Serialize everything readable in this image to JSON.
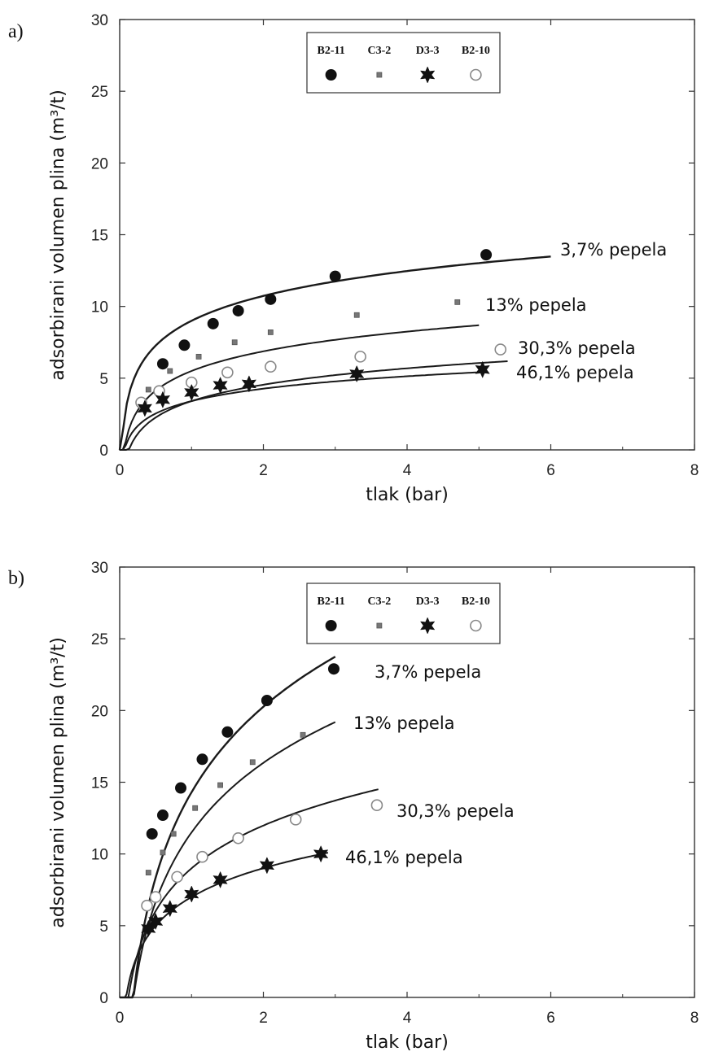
{
  "chart_data": [
    {
      "type": "line",
      "panel_label": "a)",
      "xlabel": "tlak (bar)",
      "ylabel": "adsorbirani volumen plina (m³/t)",
      "xlim": [
        0,
        8
      ],
      "ylim": [
        0,
        30
      ],
      "xticks": [
        "0",
        "2",
        "4",
        "6",
        "8"
      ],
      "yticks": [
        "0",
        "5",
        "10",
        "15",
        "20",
        "25",
        "30"
      ],
      "grid": false,
      "legend": {
        "placement": "top-center",
        "entries": [
          {
            "name": "B2-11",
            "marker": "filled-circle"
          },
          {
            "name": "C3-2",
            "marker": "small-square"
          },
          {
            "name": "D3-3",
            "marker": "star"
          },
          {
            "name": "B2-10",
            "marker": "open-circle"
          }
        ]
      },
      "series": [
        {
          "name": "B2-11",
          "marker": "filled-circle",
          "label": "3,7% pepela",
          "curve_end": 6.0,
          "points": [
            [
              0.6,
              6.0
            ],
            [
              0.9,
              7.3
            ],
            [
              1.3,
              8.8
            ],
            [
              1.65,
              9.7
            ],
            [
              2.1,
              10.5
            ],
            [
              3.0,
              12.1
            ],
            [
              5.1,
              13.6
            ]
          ],
          "fit": {
            "a": 9.0,
            "b": 2.5
          }
        },
        {
          "name": "C3-2",
          "marker": "small-square",
          "label": "13% pepela",
          "curve_end": 5.0,
          "points": [
            [
              0.4,
              4.2
            ],
            [
              0.7,
              5.5
            ],
            [
              1.1,
              6.5
            ],
            [
              1.6,
              7.5
            ],
            [
              2.1,
              8.2
            ],
            [
              3.3,
              9.4
            ],
            [
              4.7,
              10.3
            ]
          ],
          "fit": {
            "a": 5.5,
            "b": 1.98
          }
        },
        {
          "name": "B2-10",
          "marker": "open-circle",
          "label": "30,3% pepela",
          "curve_end": 5.4,
          "points": [
            [
              0.3,
              3.3
            ],
            [
              0.55,
              4.1
            ],
            [
              1.0,
              4.7
            ],
            [
              1.5,
              5.4
            ],
            [
              2.1,
              5.8
            ],
            [
              3.35,
              6.5
            ],
            [
              5.3,
              7.0
            ]
          ],
          "fit": {
            "a": 3.4,
            "b": 1.65
          }
        },
        {
          "name": "D3-3",
          "marker": "star",
          "label": "46,1% pepela",
          "curve_end": 5.1,
          "points": [
            [
              0.35,
              2.9
            ],
            [
              0.6,
              3.5
            ],
            [
              1.0,
              4.0
            ],
            [
              1.4,
              4.5
            ],
            [
              1.8,
              4.6
            ],
            [
              3.3,
              5.3
            ],
            [
              5.05,
              5.6
            ]
          ],
          "fit": {
            "a": 3.4,
            "b": 1.25
          }
        }
      ]
    },
    {
      "type": "line",
      "panel_label": "b)",
      "xlabel": "tlak (bar)",
      "ylabel": "adsorbirani volumen plina (m³/t)",
      "xlim": [
        0,
        8
      ],
      "ylim": [
        0,
        30
      ],
      "xticks": [
        "0",
        "2",
        "4",
        "6",
        "8"
      ],
      "yticks": [
        "0",
        "5",
        "10",
        "15",
        "20",
        "25",
        "30"
      ],
      "grid": false,
      "legend": {
        "placement": "top-center",
        "entries": [
          {
            "name": "B2-11",
            "marker": "filled-circle"
          },
          {
            "name": "C3-2",
            "marker": "small-square"
          },
          {
            "name": "D3-3",
            "marker": "star"
          },
          {
            "name": "B2-10",
            "marker": "open-circle"
          }
        ]
      },
      "series": [
        {
          "name": "B2-11",
          "marker": "filled-circle",
          "label": "3,7% pepela",
          "curve_end": 3.0,
          "points": [
            [
              0.45,
              11.4
            ],
            [
              0.6,
              12.7
            ],
            [
              0.85,
              14.6
            ],
            [
              1.15,
              16.6
            ],
            [
              1.5,
              18.5
            ],
            [
              2.05,
              20.7
            ],
            [
              2.98,
              22.9
            ]
          ],
          "fit": {
            "a": 14.3,
            "b": 8.6
          }
        },
        {
          "name": "C3-2",
          "marker": "small-square",
          "label": "13% pepela",
          "curve_end": 3.0,
          "points": [
            [
              0.4,
              8.7
            ],
            [
              0.6,
              10.1
            ],
            [
              0.75,
              11.4
            ],
            [
              1.05,
              13.2
            ],
            [
              1.4,
              14.8
            ],
            [
              1.85,
              16.4
            ],
            [
              2.55,
              18.3
            ]
          ],
          "fit": {
            "a": 11.5,
            "b": 7.0
          }
        },
        {
          "name": "B2-10",
          "marker": "open-circle",
          "label": "30,3% pepela",
          "curve_end": 3.6,
          "points": [
            [
              0.38,
              6.4
            ],
            [
              0.5,
              7.0
            ],
            [
              0.8,
              8.4
            ],
            [
              1.15,
              9.8
            ],
            [
              1.65,
              11.1
            ],
            [
              2.45,
              12.4
            ],
            [
              3.58,
              13.4
            ]
          ],
          "fit": {
            "a": 9.0,
            "b": 4.3
          }
        },
        {
          "name": "D3-3",
          "marker": "star",
          "label": "46,1% pepela",
          "curve_end": 2.9,
          "points": [
            [
              0.4,
              4.8
            ],
            [
              0.5,
              5.3
            ],
            [
              0.7,
              6.2
            ],
            [
              1.0,
              7.2
            ],
            [
              1.4,
              8.2
            ],
            [
              2.05,
              9.2
            ],
            [
              2.8,
              10.0
            ]
          ],
          "fit": {
            "a": 7.0,
            "b": 2.9
          }
        }
      ]
    }
  ]
}
